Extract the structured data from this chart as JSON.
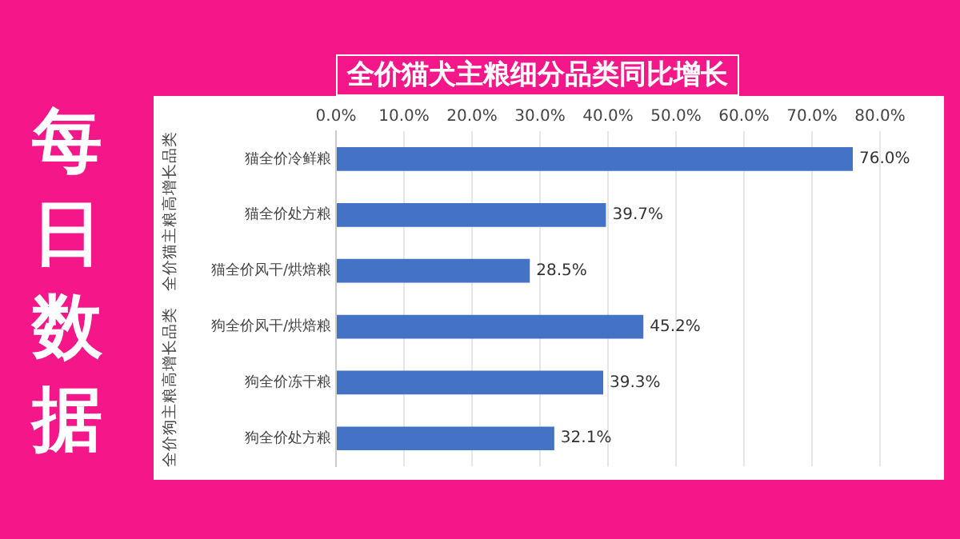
{
  "chart_data": {
    "type": "bar",
    "orientation": "horizontal",
    "title": "全价猫犬主粮细分品类同比增长",
    "categories": [
      "猫全价冷鲜粮",
      "猫全价处方粮",
      "猫全价风干/烘焙粮",
      "狗全价风干/烘焙粮",
      "狗全价冻干粮",
      "狗全价处方粮"
    ],
    "values": [
      76.0,
      39.7,
      28.5,
      45.2,
      39.3,
      32.1
    ],
    "value_labels": [
      "76.0%",
      "39.7%",
      "28.5%",
      "45.2%",
      "39.3%",
      "32.1%"
    ],
    "color": "#4472c4",
    "xlim": [
      0,
      80
    ],
    "xticks": [
      {
        "value": 0,
        "label": "0.0%"
      },
      {
        "value": 10,
        "label": "10.0%"
      },
      {
        "value": 20,
        "label": "20.0%"
      },
      {
        "value": 30,
        "label": "30.0%"
      },
      {
        "value": 40,
        "label": "40.0%"
      },
      {
        "value": 50,
        "label": "50.0%"
      },
      {
        "value": 60,
        "label": "60.0%"
      },
      {
        "value": 70,
        "label": "70.0%"
      },
      {
        "value": 80,
        "label": "80.0%"
      }
    ],
    "grid": "x",
    "annotations": [
      "每日数据",
      "全价猫主粮高增长品类",
      "全价狗主粮高增长品类"
    ]
  }
}
